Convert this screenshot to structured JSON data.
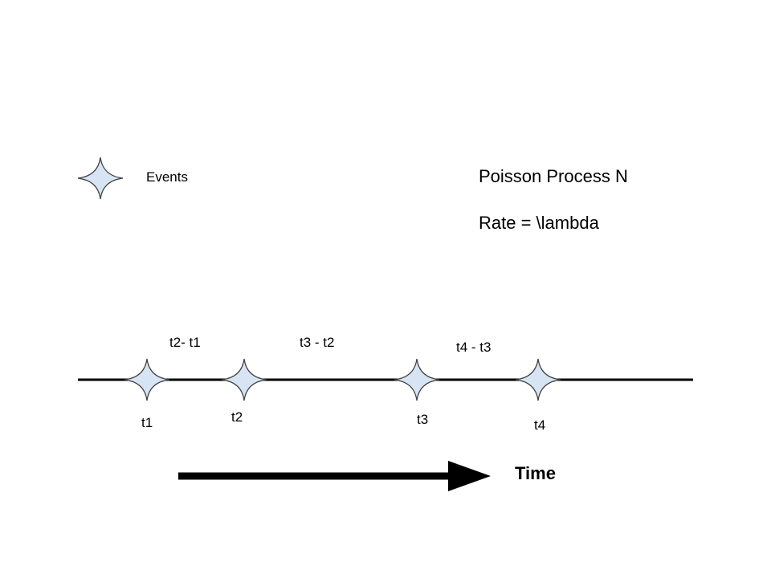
{
  "diagram": {
    "legend": {
      "icon": "four-point-star-icon",
      "label": "Events"
    },
    "title": "Poisson Process N",
    "rate_label": "Rate = \\lambda",
    "events": [
      {
        "label": "t1"
      },
      {
        "label": "t2"
      },
      {
        "label": "t3"
      },
      {
        "label": "t4"
      }
    ],
    "intervals": [
      {
        "label": "t2- t1"
      },
      {
        "label": "t3 - t2"
      },
      {
        "label": "t4 - t3"
      }
    ],
    "axis_title": "Time",
    "colors": {
      "star_fill": "#d6e4f3",
      "star_stroke": "#404040",
      "line": "#000000",
      "text": "#000000",
      "background": "#ffffff"
    }
  }
}
